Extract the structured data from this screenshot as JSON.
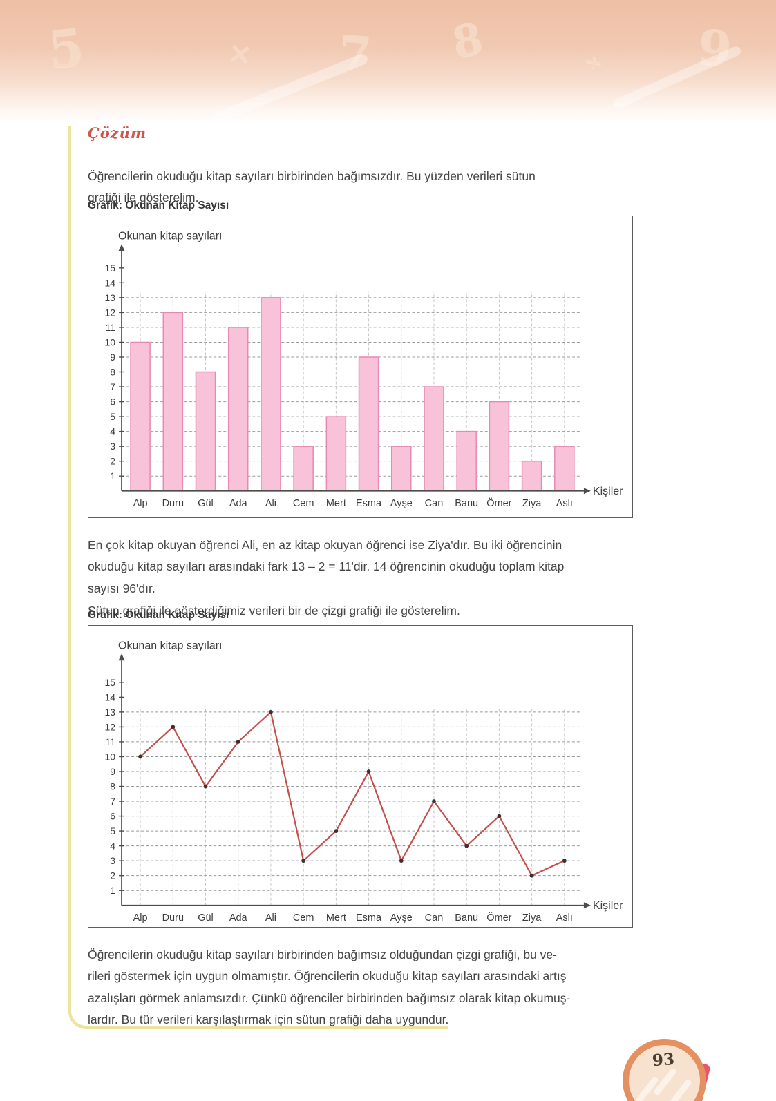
{
  "page": {
    "number": "93"
  },
  "decorative_numbers": [
    "5",
    "×",
    "7",
    "8",
    "÷",
    "9"
  ],
  "solution": {
    "heading": "Çözüm",
    "intro": "Öğrencilerin okuduğu kitap sayıları birbirinden bağımsızdır. Bu yüzden verileri sütun\ngrafiği ile gösterelim.",
    "analysis": "En çok kitap okuyan öğrenci Ali, en az kitap okuyan öğrenci ise Ziya'dır. Bu iki öğrencinin\nokuduğu kitap sayıları arasındaki fark 13 – 2 = 11'dir. 14 öğrencinin okuduğu toplam kitap\nsayısı 96'dır.",
    "transition": "Sütun grafiği ile gösterdiğimiz verileri bir de çizgi grafiği ile gösterelim.",
    "conclusion": "Öğrencilerin okuduğu kitap sayıları birbirinden bağımsız olduğundan çizgi grafiği, bu ve-\nrileri göstermek için uygun olmamıştır. Öğrencilerin okuduğu kitap sayıları arasındaki artış\nazalışları görmek anlamsızdır. Çünkü öğrenciler birbirinden bağımsız olarak kitap okumuş-\nlardır. Bu tür verileri karşılaştırmak için sütun grafiği daha uygundur."
  },
  "charts": {
    "bar_label": "Grafik: Okunan Kitap Sayısı",
    "line_label": "Grafik: Okunan Kitap Sayısı"
  },
  "colors": {
    "frame_yellow": "#ebe49d",
    "band_peach": "#eec0a5",
    "heading_red": "#d5544a",
    "badge_ring": "#e59060",
    "badge_fill": "#f7e2d0"
  },
  "chart_data": [
    {
      "type": "bar",
      "title": "Grafik: Okunan Kitap Sayısı",
      "ylabel": "Okunan kitap sayıları",
      "xlabel": "Kişiler",
      "categories": [
        "Alp",
        "Duru",
        "Gül",
        "Ada",
        "Ali",
        "Cem",
        "Mert",
        "Esma",
        "Ayşe",
        "Can",
        "Banu",
        "Ömer",
        "Ziya",
        "Aslı"
      ],
      "values": [
        10,
        12,
        8,
        11,
        13,
        3,
        5,
        9,
        3,
        7,
        4,
        6,
        2,
        3
      ],
      "ylim": [
        0,
        15
      ],
      "yticks": [
        1,
        2,
        3,
        4,
        5,
        6,
        7,
        8,
        9,
        10,
        11,
        12,
        13,
        14,
        15
      ],
      "grid": "dashed horizontal and vertical, gridlines up to 13",
      "legend": "none",
      "bar_color": "#f8c2d8",
      "bar_border": "#e888b4"
    },
    {
      "type": "line",
      "title": "Grafik: Okunan Kitap Sayısı",
      "ylabel": "Okunan kitap sayıları",
      "xlabel": "Kişiler",
      "categories": [
        "Alp",
        "Duru",
        "Gül",
        "Ada",
        "Ali",
        "Cem",
        "Mert",
        "Esma",
        "Ayşe",
        "Can",
        "Banu",
        "Ömer",
        "Ziya",
        "Aslı"
      ],
      "values": [
        10,
        12,
        8,
        11,
        13,
        3,
        5,
        9,
        3,
        7,
        4,
        6,
        2,
        3
      ],
      "ylim": [
        0,
        15
      ],
      "yticks": [
        1,
        2,
        3,
        4,
        5,
        6,
        7,
        8,
        9,
        10,
        11,
        12,
        13,
        14,
        15
      ],
      "grid": "dashed horizontal and vertical, gridlines up to 13",
      "legend": "none",
      "line_color": "#c4504b",
      "marker_color": "#3f2f2f"
    }
  ]
}
